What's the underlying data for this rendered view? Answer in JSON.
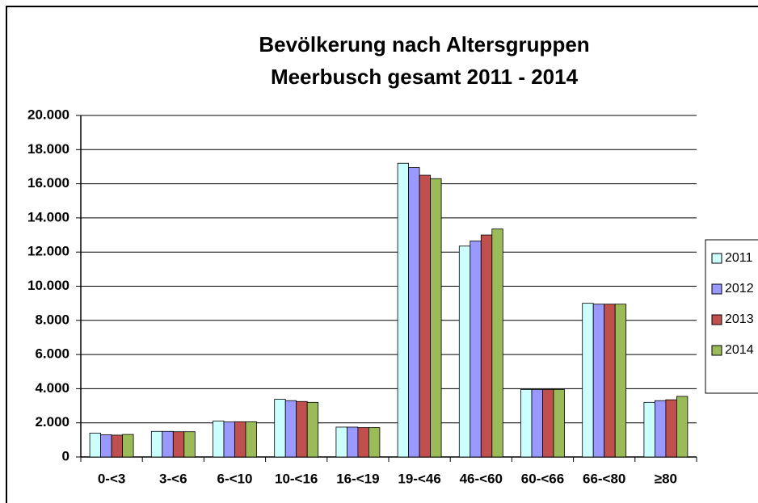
{
  "chart_data": {
    "type": "bar",
    "title": [
      "Bevölkerung nach Altersgruppen",
      "Meerbusch gesamt 2011 - 2014"
    ],
    "categories": [
      "0-<3",
      "3-<6",
      "6-<10",
      "10-<16",
      "16-<19",
      "19-<46",
      "46-<60",
      "60-<66",
      "66-<80",
      "≥80"
    ],
    "series": [
      {
        "name": "2011",
        "color": "#ccffff",
        "values": [
          1400,
          1500,
          2100,
          3380,
          1750,
          17200,
          12350,
          3950,
          9000,
          3200
        ]
      },
      {
        "name": "2012",
        "color": "#9999ff",
        "values": [
          1300,
          1500,
          2050,
          3300,
          1750,
          16950,
          12650,
          3950,
          8950,
          3300
        ]
      },
      {
        "name": "2013",
        "color": "#c0504d",
        "values": [
          1280,
          1480,
          2060,
          3250,
          1720,
          16500,
          13000,
          3950,
          8950,
          3350
        ]
      },
      {
        "name": "2014",
        "color": "#9bbb59",
        "values": [
          1320,
          1480,
          2060,
          3200,
          1720,
          16300,
          13350,
          3950,
          8950,
          3550
        ]
      }
    ],
    "ylim": [
      0,
      20000
    ],
    "yticks": [
      0,
      {
        "value": 2000,
        "label": "2.000"
      },
      {
        "value": 4000,
        "label": "4.000"
      },
      {
        "value": 6000,
        "label": "6.000"
      },
      {
        "value": 8000,
        "label": "8.000"
      },
      {
        "value": 10000,
        "label": "10.000"
      },
      {
        "value": 12000,
        "label": "12.000"
      },
      {
        "value": 14000,
        "label": "14.000"
      },
      {
        "value": 16000,
        "label": "16.000"
      },
      {
        "value": 18000,
        "label": "18.000"
      },
      {
        "value": 20000,
        "label": "20.000"
      }
    ],
    "grid": true,
    "legend": "right"
  }
}
